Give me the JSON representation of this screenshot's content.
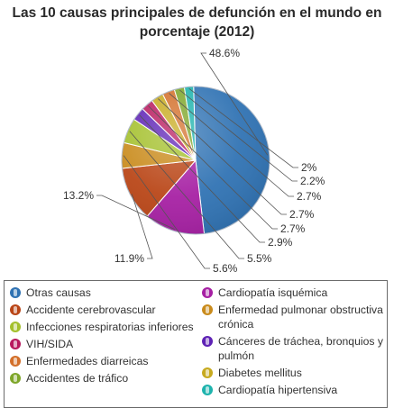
{
  "chart_data": {
    "type": "pie",
    "title_lines": [
      "Las 10 causas principales de defunción en el mundo en",
      "porcentaje (2012)"
    ],
    "legend_placement": "bottom",
    "series": [
      {
        "name": "Otras causas",
        "value": 48.6,
        "label": "48.6%",
        "color": "#2f72b3"
      },
      {
        "name": "Cardiopatía isquémica",
        "value": 13.2,
        "label": "13.2%",
        "color": "#a61fa3"
      },
      {
        "name": "Accidente cerebrovascular",
        "value": 11.9,
        "label": "11.9%",
        "color": "#b94516"
      },
      {
        "name": "Enfermedad pulmonar obstructiva crónica",
        "value": 5.6,
        "label": "5.6%",
        "color": "#c98b1c"
      },
      {
        "name": "Infecciones respiratorias inferiores",
        "value": 5.5,
        "label": "5.5%",
        "color": "#a4c02c"
      },
      {
        "name": "Cánceres de tráchea, bronquios y pulmón",
        "value": 2.9,
        "label": "2.9%",
        "color": "#5e22b5"
      },
      {
        "name": "VIH/SIDA",
        "value": 2.7,
        "label": "2.7%",
        "color": "#b8195e"
      },
      {
        "name": "Diabetes mellitus",
        "value": 2.7,
        "label": "2.7%",
        "color": "#c7aa1f"
      },
      {
        "name": "Enfermedades diarreicas",
        "value": 2.7,
        "label": "2.7%",
        "color": "#d36f2a"
      },
      {
        "name": "Accidentes de tráfico",
        "value": 2.2,
        "label": "2.2%",
        "color": "#7ea62a"
      },
      {
        "name": "Cardiopatía hipertensiva",
        "value": 2.0,
        "label": "2%",
        "color": "#1eb3ad"
      }
    ]
  },
  "legend": {
    "left_column": [
      {
        "label": "Otras causas",
        "color": "#2f72b3"
      },
      {
        "label": "Accidente cerebrovascular",
        "color": "#b94516"
      },
      {
        "label": "Infecciones respiratorias inferiores",
        "color": "#a4c02c"
      },
      {
        "label": "VIH/SIDA",
        "color": "#b8195e"
      },
      {
        "label": "Enfermedades diarreicas",
        "color": "#d36f2a"
      },
      {
        "label": "Accidentes de tráfico",
        "color": "#7ea62a"
      }
    ],
    "right_column": [
      {
        "label": "Cardiopatía isquémica",
        "color": "#a61fa3"
      },
      {
        "label": "Enfermedad pulmonar obstructiva crónica",
        "color": "#c98b1c"
      },
      {
        "label": "Cánceres de tráchea, bronquios y pulmón",
        "color": "#5e22b5"
      },
      {
        "label": "Diabetes mellitus",
        "color": "#c7aa1f"
      },
      {
        "label": "Cardiopatía hipertensiva",
        "color": "#1eb3ad"
      }
    ]
  }
}
